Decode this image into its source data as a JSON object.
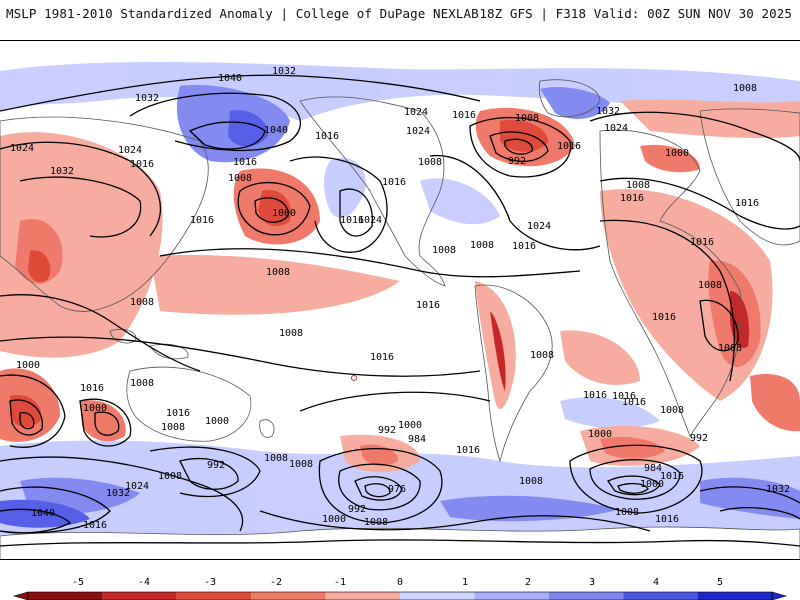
{
  "header": {
    "left": "MSLP 1981-2010 Standardized Anomaly | College of DuPage NEXLAB",
    "right": "18Z GFS | F318 Valid: 00Z SUN NOV 30 2025"
  },
  "contour_labels": [
    "1032",
    "1040",
    "1032",
    "1024",
    "1032",
    "1024",
    "1016",
    "1016",
    "1016",
    "1008",
    "1000",
    "1016",
    "1040",
    "1024",
    "1016",
    "1024",
    "1016",
    "1008",
    "1016",
    "1008",
    "1024",
    "1016",
    "1008",
    "1032",
    "1024",
    "1016",
    "1008",
    "1000",
    "1024",
    "992",
    "1008",
    "1016",
    "1008",
    "1008",
    "1016",
    "1008",
    "1016",
    "1008",
    "1016",
    "1008",
    "1008",
    "1008",
    "1016",
    "1016",
    "1016",
    "1000",
    "1016",
    "1016",
    "1008",
    "1000",
    "1008",
    "992",
    "992",
    "1000",
    "984",
    "1008",
    "976",
    "992",
    "1000",
    "1008",
    "1016",
    "1008",
    "1000",
    "992",
    "984",
    "1000",
    "1008",
    "1016",
    "1008",
    "1000",
    "1024",
    "1032",
    "1040",
    "1016",
    "1008",
    "1016",
    "1016",
    "1008",
    "1032",
    "1016"
  ],
  "colorbar": {
    "ticks": [
      "-5",
      "-4",
      "-3",
      "-2",
      "-1",
      "0",
      "1",
      "2",
      "3",
      "4",
      "5"
    ],
    "colors": [
      "#8a0f0f",
      "#c62828",
      "#e04a3a",
      "#f07a6a",
      "#f7aca0",
      "#ffffff",
      "#cfd3ff",
      "#a9b0fb",
      "#7d85f1",
      "#4c57e6",
      "#1d28c8"
    ]
  },
  "legend": {
    "anomaly_positive": "#8f97f3",
    "anomaly_negative": "#ef8a7e",
    "land_line": "#555555"
  }
}
